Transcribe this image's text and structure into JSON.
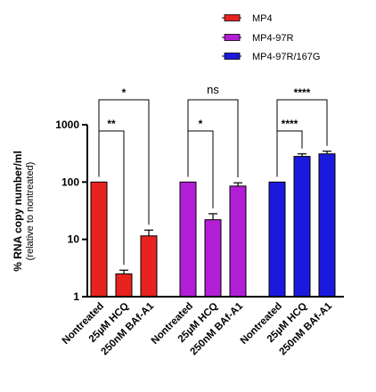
{
  "chart_data": {
    "type": "bar",
    "yscale": "log",
    "ylim": [
      1,
      1000
    ],
    "yticks": [
      "1",
      "10",
      "100",
      "1000"
    ],
    "ylabel": "% RNA copy number/ml",
    "ylabel_sub": "(relative to nontreated)",
    "legend_position": "top-right",
    "categories": [
      "Nontreated",
      "25µM HCQ",
      "250nM BAf-A1"
    ],
    "series": [
      {
        "name": "MP4",
        "color": "#e8231f",
        "values": [
          100,
          2.5,
          11.5
        ],
        "errors": [
          0,
          0.4,
          3
        ]
      },
      {
        "name": "MP4-97R",
        "color": "#b21ed6",
        "values": [
          100,
          22,
          85
        ],
        "errors": [
          0,
          6,
          12
        ]
      },
      {
        "name": "MP4-97R/167G",
        "color": "#1a1adf",
        "values": [
          100,
          280,
          310
        ],
        "errors": [
          0,
          30,
          35
        ]
      }
    ],
    "significance": [
      {
        "group": 0,
        "from": 0,
        "to": 1,
        "label": "**"
      },
      {
        "group": 0,
        "from": 0,
        "to": 2,
        "label": "*"
      },
      {
        "group": 1,
        "from": 0,
        "to": 1,
        "label": "*"
      },
      {
        "group": 1,
        "from": 0,
        "to": 2,
        "label": "ns"
      },
      {
        "group": 2,
        "from": 0,
        "to": 1,
        "label": "****"
      },
      {
        "group": 2,
        "from": 0,
        "to": 2,
        "label": "****"
      }
    ]
  }
}
